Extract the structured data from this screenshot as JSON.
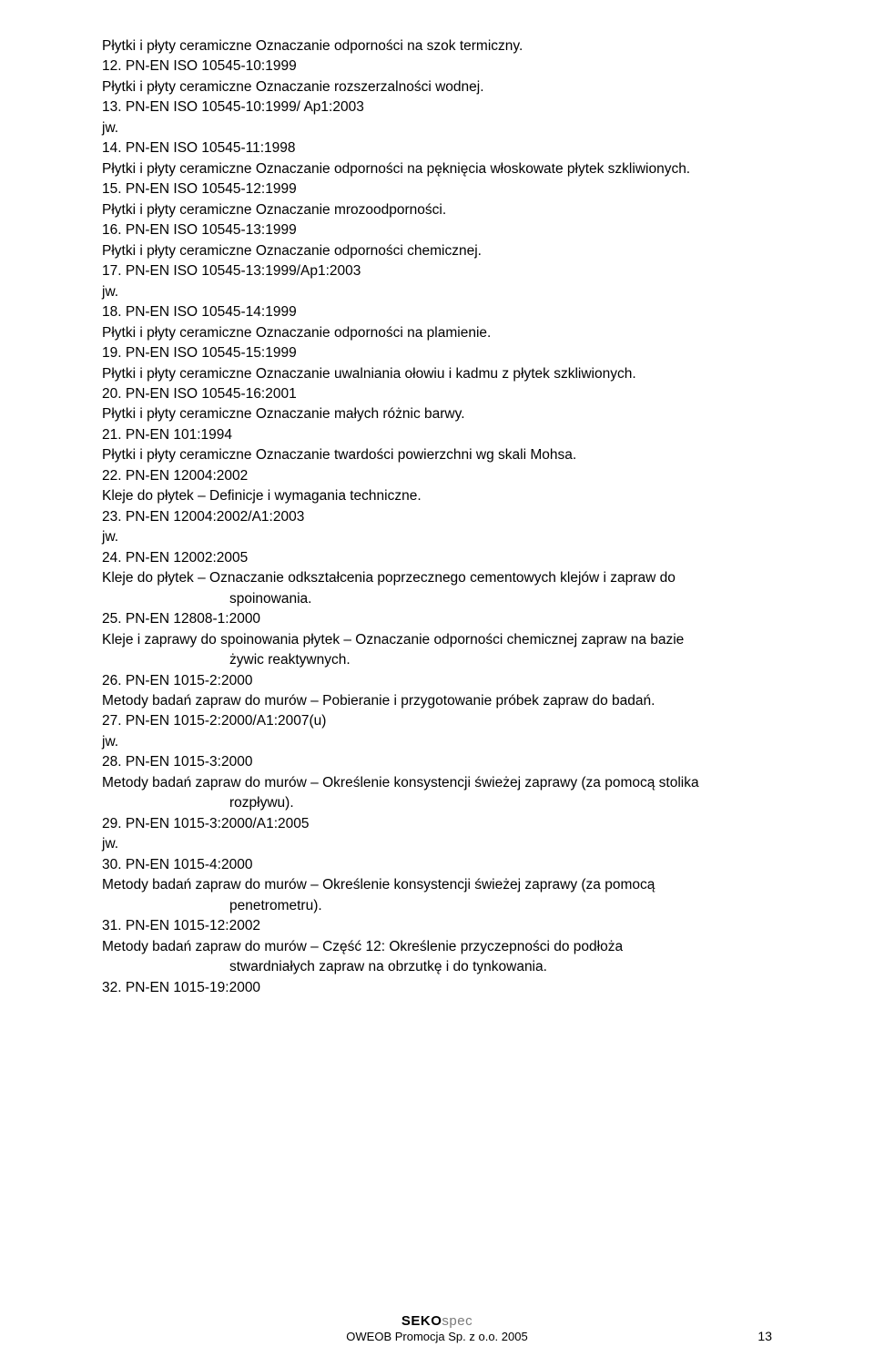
{
  "items": [
    {
      "type": "desc",
      "text": "Płytki i płyty ceramiczne Oznaczanie odporności na szok termiczny."
    },
    {
      "type": "heading",
      "text": "12. PN-EN ISO 10545-10:1999"
    },
    {
      "type": "desc",
      "text": "Płytki i płyty ceramiczne Oznaczanie rozszerzalności wodnej."
    },
    {
      "type": "heading",
      "text": "13. PN-EN ISO 10545-10:1999/ Ap1:2003"
    },
    {
      "type": "jw",
      "text": "jw."
    },
    {
      "type": "heading",
      "text": "14. PN-EN ISO 10545-11:1998"
    },
    {
      "type": "desc",
      "text": "Płytki i płyty ceramiczne Oznaczanie odporności na pęknięcia włoskowate płytek szkliwionych."
    },
    {
      "type": "heading",
      "text": "15. PN-EN ISO 10545-12:1999"
    },
    {
      "type": "desc",
      "text": "Płytki i płyty ceramiczne Oznaczanie mrozoodporności."
    },
    {
      "type": "heading",
      "text": "16. PN-EN ISO 10545-13:1999"
    },
    {
      "type": "desc",
      "text": "Płytki i płyty ceramiczne Oznaczanie odporności chemicznej."
    },
    {
      "type": "heading",
      "text": "17. PN-EN ISO 10545-13:1999/Ap1:2003"
    },
    {
      "type": "jw",
      "text": "jw."
    },
    {
      "type": "heading",
      "text": "18. PN-EN ISO 10545-14:1999"
    },
    {
      "type": "desc",
      "text": "Płytki i płyty ceramiczne Oznaczanie odporności na plamienie."
    },
    {
      "type": "heading",
      "text": "19. PN-EN ISO 10545-15:1999"
    },
    {
      "type": "desc",
      "text": "Płytki i płyty ceramiczne Oznaczanie uwalniania ołowiu i kadmu z płytek szkliwionych."
    },
    {
      "type": "heading",
      "text": "20. PN-EN ISO 10545-16:2001"
    },
    {
      "type": "desc",
      "text": "Płytki i płyty ceramiczne Oznaczanie małych różnic barwy."
    },
    {
      "type": "heading",
      "text": "21. PN-EN 101:1994"
    },
    {
      "type": "desc",
      "text": "Płytki i płyty ceramiczne Oznaczanie twardości powierzchni wg skali Mohsa."
    },
    {
      "type": "heading",
      "text": "22. PN-EN 12004:2002"
    },
    {
      "type": "desc",
      "text": "Kleje do płytek – Definicje i wymagania techniczne."
    },
    {
      "type": "heading",
      "text": "23. PN-EN 12004:2002/A1:2003"
    },
    {
      "type": "jw",
      "text": "jw."
    },
    {
      "type": "heading",
      "text": "24. PN-EN 12002:2005"
    },
    {
      "type": "desc",
      "text": "Kleje do płytek – Oznaczanie odkształcenia poprzecznego cementowych klejów i zapraw do"
    },
    {
      "type": "desc-indent",
      "text": "spoinowania."
    },
    {
      "type": "heading",
      "text": "25. PN-EN 12808-1:2000"
    },
    {
      "type": "desc",
      "text": "Kleje i zaprawy do spoinowania płytek – Oznaczanie odporności chemicznej zapraw na bazie"
    },
    {
      "type": "desc-indent",
      "text": "żywic reaktywnych."
    },
    {
      "type": "heading",
      "text": "26. PN-EN 1015-2:2000"
    },
    {
      "type": "desc",
      "text": "Metody badań zapraw do murów – Pobieranie i przygotowanie próbek zapraw do badań."
    },
    {
      "type": "heading",
      "text": "27. PN-EN 1015-2:2000/A1:2007(u)"
    },
    {
      "type": "jw",
      "text": "jw."
    },
    {
      "type": "heading",
      "text": "28. PN-EN 1015-3:2000"
    },
    {
      "type": "desc",
      "text": "Metody badań zapraw do murów – Określenie konsystencji świeżej zaprawy (za pomocą stolika"
    },
    {
      "type": "desc-indent",
      "text": "rozpływu)."
    },
    {
      "type": "heading",
      "text": "29. PN-EN 1015-3:2000/A1:2005"
    },
    {
      "type": "jw",
      "text": "jw."
    },
    {
      "type": "heading",
      "text": "30. PN-EN 1015-4:2000"
    },
    {
      "type": "desc",
      "text": "Metody badań zapraw do murów – Określenie konsystencji świeżej zaprawy (za pomocą"
    },
    {
      "type": "desc-indent",
      "text": "penetrometru)."
    },
    {
      "type": "heading",
      "text": "31. PN-EN 1015-12:2002"
    },
    {
      "type": "desc",
      "text": "Metody badań zapraw do murów – Część 12: Określenie przyczepności do podłoża"
    },
    {
      "type": "desc-indent",
      "text": "stwardniałych zapraw na obrzutkę i do tynkowania."
    },
    {
      "type": "heading",
      "text": "32. PN-EN 1015-19:2000"
    }
  ],
  "footer": {
    "logo_seko": "SEKO",
    "logo_spec": "spec",
    "subtitle": "OWEOB Promocja Sp. z o.o. 2005"
  },
  "page_number": "13"
}
